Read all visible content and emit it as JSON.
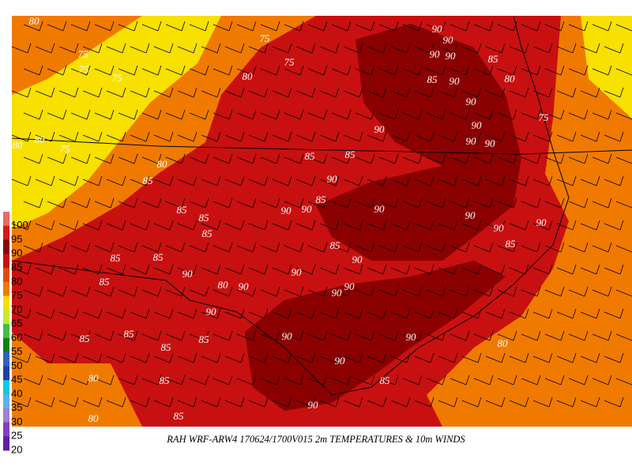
{
  "caption": "RAH WRF-ARW4 170624/1700V015  2m TEMPERATURES & 10m WINDS",
  "legend": {
    "labels": [
      100,
      95,
      90,
      85,
      80,
      75,
      70,
      65,
      60,
      55,
      50,
      45,
      40,
      35,
      30,
      25,
      20
    ],
    "colors": [
      "#e86a6a",
      "#d81818",
      "#8b0000",
      "#c81010",
      "#e04a00",
      "#f07a00",
      "#f8e000",
      "#c8e830",
      "#40c040",
      "#108010",
      "#3060c0",
      "#2040a0",
      "#10c8e0",
      "#60b0f0",
      "#a080d0",
      "#8040c0",
      "#6020a0"
    ]
  },
  "contour_labels": [
    90,
    90,
    90,
    90,
    85,
    85,
    90,
    90,
    90,
    90,
    90,
    90,
    85,
    85,
    90,
    90,
    90,
    90,
    85,
    90,
    90,
    90,
    85,
    90,
    90,
    90,
    90,
    90,
    90,
    90,
    90,
    90,
    90,
    80,
    85,
    80,
    75,
    75,
    75,
    80,
    75,
    80,
    75,
    80,
    85,
    85,
    85,
    85,
    85,
    85,
    85,
    85,
    85,
    85,
    85,
    80,
    80,
    85,
    80,
    90,
    85,
    85,
    80,
    75,
    75,
    80
  ]
}
